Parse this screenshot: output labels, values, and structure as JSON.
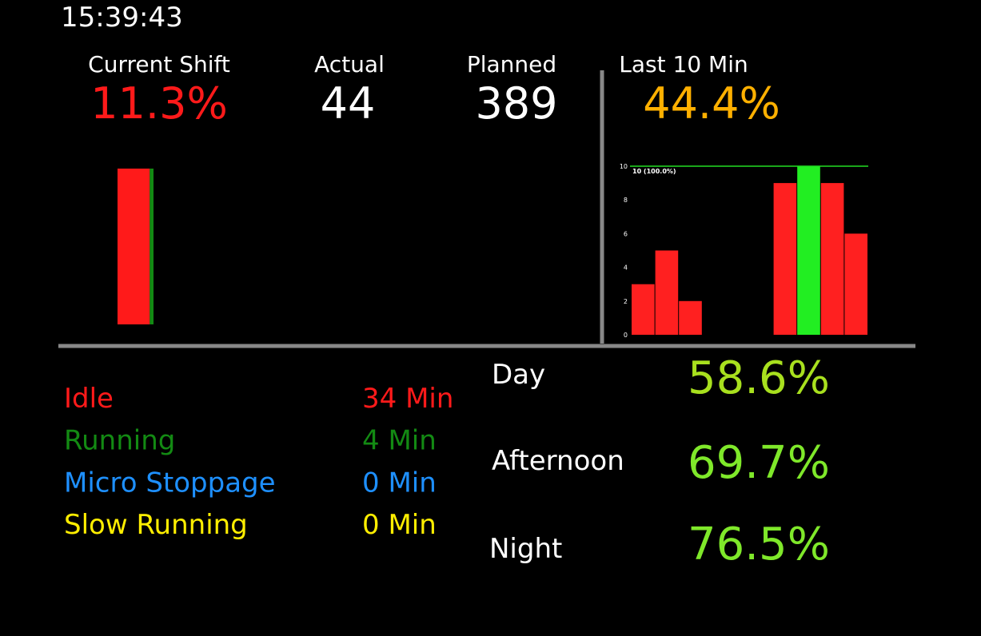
{
  "clock": "15:39:43",
  "stats": [
    {
      "label": "Current Shift",
      "value": "11.3%",
      "color": "#ff1a1a"
    },
    {
      "label": "Actual",
      "value": "44",
      "color": "#ffffff"
    },
    {
      "label": "Planned",
      "value": "389",
      "color": "#ffffff"
    },
    {
      "label": "Last 10 Min",
      "value": "44.4%",
      "color": "#ffb000"
    }
  ],
  "status": [
    {
      "name": "Idle",
      "minutes": 34,
      "minutes_label": "34 Min",
      "color": "#ff1a1a"
    },
    {
      "name": "Running",
      "minutes": 4,
      "minutes_label": "4 Min",
      "color": "#138a13"
    },
    {
      "name": "Micro Stoppage",
      "minutes": 0,
      "minutes_label": "0 Min",
      "color": "#1e90ff"
    },
    {
      "name": "Slow Running",
      "minutes": 0,
      "minutes_label": "0 Min",
      "color": "#ffee00"
    }
  ],
  "shifts": [
    {
      "name": "Day",
      "value": "58.6%",
      "color": "#a8e01e"
    },
    {
      "name": "Afternoon",
      "value": "69.7%",
      "color": "#7fe82a"
    },
    {
      "name": "Night",
      "value": "76.5%",
      "color": "#7fe82a"
    }
  ],
  "chart_data": {
    "type": "bar",
    "categories": [
      null,
      null,
      null,
      null,
      null,
      null,
      null,
      null,
      null,
      null
    ],
    "values": [
      3,
      5,
      2,
      0,
      0,
      0,
      9,
      10,
      9,
      6
    ],
    "colors": [
      "#ff2020",
      "#ff2020",
      "#ff2020",
      "#ff2020",
      "#ff2020",
      "#ff2020",
      "#ff2020",
      "#22ee22",
      "#ff2020",
      "#ff2020"
    ],
    "ylim": [
      0,
      10
    ],
    "yticks": [
      0,
      2,
      4,
      6,
      8,
      10
    ],
    "target": {
      "value": 10,
      "label": "10 (100.0%)",
      "color": "#22dd22"
    }
  }
}
